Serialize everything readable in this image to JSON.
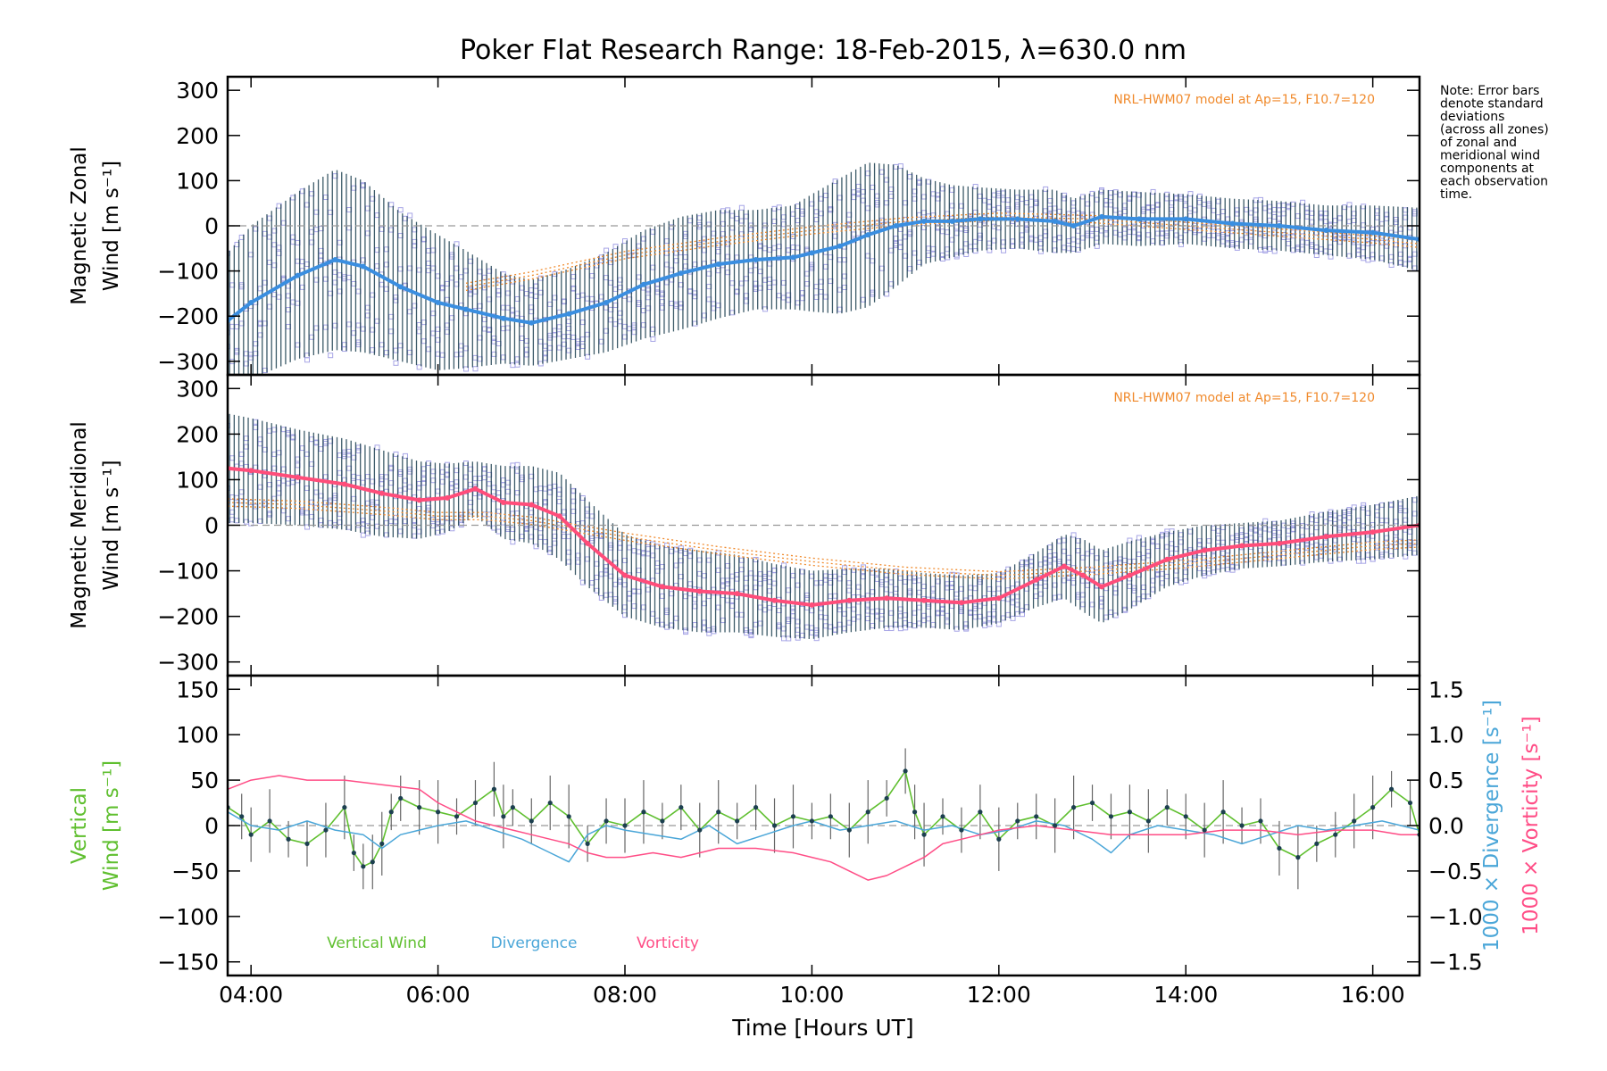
{
  "chart_data": {
    "title": "Poker Flat Research Range: 18-Feb-2015, λ=630.0 nm",
    "note": [
      "Note: Error bars",
      "denote standard",
      "deviations",
      "(across all zones)",
      "of zonal and",
      "meridional wind",
      "components at",
      "each observation",
      "time."
    ],
    "xlabel": "Time [Hours UT]",
    "xlim": [
      3.75,
      16.5
    ],
    "xticks": [
      4,
      6,
      8,
      10,
      12,
      14,
      16
    ],
    "xtick_labels": [
      "04:00",
      "06:00",
      "08:00",
      "10:00",
      "12:00",
      "14:00",
      "16:00"
    ],
    "colors": {
      "zonal": "#3a8ee0",
      "meridional": "#ff4d7a",
      "model": "#f08a2c",
      "errorbar": "#1c3f4f",
      "zone_points": "#a7a5e6",
      "vertical": "#5fbf2f",
      "divergence": "#4aa6d8",
      "vorticity": "#ff4d86",
      "reference": "#999999"
    },
    "panels": [
      {
        "type": "line",
        "ylabel": [
          "Magnetic Zonal",
          "Wind [m s⁻¹]"
        ],
        "ylim": [
          -330,
          330
        ],
        "yticks": [
          -300,
          -200,
          -100,
          0,
          100,
          200,
          300
        ],
        "model_label": "NRL-HWM07 model at Ap=15, F10.7=120",
        "series": [
          {
            "key": "zonal",
            "x": [
              3.75,
              4.0,
              4.5,
              4.9,
              5.2,
              5.6,
              6.0,
              6.3,
              6.7,
              7.0,
              7.4,
              7.8,
              8.2,
              8.6,
              9.0,
              9.4,
              9.8,
              10.0,
              10.3,
              10.6,
              10.9,
              11.2,
              11.5,
              11.8,
              12.2,
              12.6,
              12.8,
              13.1,
              13.5,
              14.0,
              14.5,
              15.0,
              15.5,
              16.0,
              16.5
            ],
            "y": [
              -210,
              -170,
              -110,
              -75,
              -90,
              -135,
              -170,
              -185,
              -205,
              -215,
              -195,
              -170,
              -130,
              -105,
              -85,
              -75,
              -70,
              -60,
              -45,
              -20,
              0,
              10,
              10,
              15,
              15,
              10,
              0,
              20,
              15,
              15,
              5,
              0,
              -10,
              -15,
              -30
            ],
            "err": [
              150,
              170,
              185,
              200,
              190,
              165,
              150,
              130,
              100,
              95,
              100,
              110,
              120,
              125,
              120,
              110,
              115,
              130,
              150,
              160,
              135,
              95,
              80,
              70,
              65,
              70,
              60,
              60,
              60,
              55,
              55,
              55,
              55,
              60,
              70
            ]
          }
        ],
        "model": {
          "x": [
            6.3,
            7.0,
            8.0,
            9.0,
            10.0,
            11.0,
            12.0,
            13.0,
            14.0,
            15.0,
            16.0,
            16.5
          ],
          "y": [
            -135,
            -110,
            -65,
            -35,
            -10,
            10,
            20,
            15,
            0,
            -15,
            -30,
            -40
          ]
        }
      },
      {
        "type": "line",
        "ylabel": [
          "Magnetic Meridional",
          "Wind [m s⁻¹]"
        ],
        "ylim": [
          -330,
          330
        ],
        "yticks": [
          -300,
          -200,
          -100,
          0,
          100,
          200,
          300
        ],
        "model_label": "NRL-HWM07 model at Ap=15, F10.7=120",
        "series": [
          {
            "key": "meridional",
            "x": [
              3.75,
              4.0,
              4.5,
              5.0,
              5.4,
              5.8,
              6.1,
              6.4,
              6.7,
              7.0,
              7.3,
              7.6,
              8.0,
              8.4,
              8.8,
              9.2,
              9.6,
              10.0,
              10.4,
              10.8,
              11.2,
              11.6,
              12.0,
              12.4,
              12.7,
              12.9,
              13.1,
              13.4,
              13.8,
              14.2,
              14.6,
              15.0,
              15.5,
              16.0,
              16.5
            ],
            "y": [
              125,
              120,
              105,
              90,
              70,
              55,
              60,
              80,
              50,
              45,
              20,
              -40,
              -110,
              -135,
              -145,
              -150,
              -165,
              -175,
              -165,
              -160,
              -165,
              -170,
              -160,
              -120,
              -90,
              -110,
              -135,
              -110,
              -75,
              -55,
              -45,
              -40,
              -25,
              -15,
              0
            ],
            "err": [
              120,
              115,
              105,
              100,
              95,
              85,
              75,
              60,
              80,
              85,
              95,
              95,
              90,
              90,
              90,
              85,
              80,
              75,
              70,
              65,
              60,
              60,
              55,
              60,
              70,
              80,
              80,
              75,
              60,
              55,
              50,
              50,
              55,
              60,
              65
            ]
          }
        ],
        "model": {
          "x": [
            3.75,
            4.5,
            5.5,
            6.0,
            6.5,
            7.0,
            8.0,
            9.0,
            10.0,
            11.0,
            12.0,
            13.0,
            14.0,
            15.0,
            16.0,
            16.5
          ],
          "y": [
            50,
            45,
            30,
            20,
            20,
            10,
            -25,
            -55,
            -80,
            -100,
            -110,
            -100,
            -85,
            -65,
            -45,
            -40
          ]
        }
      },
      {
        "type": "line",
        "ylabel": [
          "Vertical",
          "Wind [m s⁻¹]"
        ],
        "ylim": [
          -165,
          165
        ],
        "yticks": [
          -150,
          -100,
          -50,
          0,
          50,
          100,
          150
        ],
        "y2label_div": "1000 × Divergence [s⁻¹]",
        "y2label_vort": "1000 × Vorticity [s⁻¹]",
        "y2lim": [
          -1.65,
          1.65
        ],
        "y2ticks": [
          -1.5,
          -1.0,
          -0.5,
          0.0,
          0.5,
          1.0,
          1.5
        ],
        "y2tick_labels": [
          "−1.5",
          "−1.0",
          "−0.5",
          "0.0",
          "0.5",
          "1.0",
          "1.5"
        ],
        "legend": [
          "Vertical Wind",
          "Divergence",
          "Vorticity"
        ],
        "series": [
          {
            "key": "vertical",
            "name": "Vertical Wind",
            "axis": "left",
            "x": [
              3.75,
              3.9,
              4.0,
              4.2,
              4.4,
              4.6,
              4.8,
              5.0,
              5.1,
              5.2,
              5.3,
              5.4,
              5.5,
              5.6,
              5.8,
              6.0,
              6.2,
              6.4,
              6.6,
              6.7,
              6.8,
              7.0,
              7.2,
              7.4,
              7.6,
              7.8,
              8.0,
              8.2,
              8.4,
              8.6,
              8.8,
              9.0,
              9.2,
              9.4,
              9.6,
              9.8,
              10.0,
              10.2,
              10.4,
              10.6,
              10.8,
              11.0,
              11.1,
              11.2,
              11.4,
              11.6,
              11.8,
              12.0,
              12.2,
              12.4,
              12.6,
              12.8,
              13.0,
              13.2,
              13.4,
              13.6,
              13.8,
              14.0,
              14.2,
              14.4,
              14.6,
              14.8,
              15.0,
              15.2,
              15.4,
              15.6,
              15.8,
              16.0,
              16.2,
              16.4,
              16.5
            ],
            "y": [
              20,
              10,
              -10,
              5,
              -15,
              -20,
              -5,
              20,
              -30,
              -45,
              -40,
              -20,
              15,
              30,
              20,
              15,
              10,
              25,
              40,
              10,
              20,
              5,
              25,
              10,
              -20,
              5,
              0,
              15,
              5,
              20,
              -5,
              15,
              5,
              20,
              0,
              10,
              5,
              10,
              -5,
              15,
              30,
              60,
              15,
              -10,
              10,
              -5,
              15,
              -15,
              5,
              10,
              0,
              20,
              25,
              10,
              15,
              5,
              20,
              10,
              -5,
              15,
              0,
              5,
              -25,
              -35,
              -20,
              -10,
              5,
              20,
              40,
              25,
              -10
            ]
          },
          {
            "key": "divergence",
            "name": "Divergence",
            "axis": "right",
            "x": [
              3.75,
              4.0,
              4.3,
              4.6,
              4.9,
              5.2,
              5.4,
              5.6,
              5.8,
              6.0,
              6.3,
              6.6,
              6.9,
              7.2,
              7.4,
              7.6,
              7.8,
              8.0,
              8.3,
              8.6,
              8.9,
              9.2,
              9.5,
              9.8,
              10.0,
              10.3,
              10.6,
              10.9,
              11.2,
              11.5,
              11.8,
              12.1,
              12.4,
              12.7,
              13.0,
              13.2,
              13.4,
              13.7,
              14.0,
              14.3,
              14.6,
              14.9,
              15.2,
              15.5,
              15.8,
              16.1,
              16.3,
              16.5
            ],
            "y": [
              0.15,
              0.0,
              -0.05,
              0.05,
              -0.05,
              -0.1,
              -0.25,
              -0.1,
              -0.05,
              0.0,
              0.05,
              -0.05,
              -0.15,
              -0.3,
              -0.4,
              -0.1,
              0.0,
              -0.05,
              -0.1,
              -0.15,
              0.0,
              -0.2,
              -0.1,
              0.0,
              0.05,
              -0.05,
              0.0,
              0.05,
              -0.05,
              0.0,
              -0.1,
              -0.05,
              0.05,
              0.0,
              -0.15,
              -0.3,
              -0.1,
              0.0,
              -0.05,
              -0.1,
              -0.2,
              -0.1,
              0.0,
              -0.05,
              0.0,
              0.05,
              0.0,
              -0.05
            ]
          },
          {
            "key": "vorticity",
            "name": "Vorticity",
            "axis": "right",
            "x": [
              3.75,
              4.0,
              4.3,
              4.6,
              5.0,
              5.4,
              5.8,
              6.0,
              6.2,
              6.4,
              6.6,
              6.8,
              7.0,
              7.2,
              7.4,
              7.6,
              7.8,
              8.0,
              8.3,
              8.6,
              9.0,
              9.4,
              9.8,
              10.0,
              10.2,
              10.4,
              10.6,
              10.8,
              11.0,
              11.2,
              11.4,
              11.6,
              11.8,
              12.0,
              12.4,
              12.8,
              13.2,
              13.6,
              14.0,
              14.4,
              14.8,
              15.2,
              15.6,
              16.0,
              16.3,
              16.5
            ],
            "y": [
              0.4,
              0.5,
              0.55,
              0.5,
              0.5,
              0.45,
              0.4,
              0.25,
              0.15,
              0.05,
              0.0,
              -0.05,
              -0.1,
              -0.15,
              -0.2,
              -0.3,
              -0.35,
              -0.35,
              -0.3,
              -0.35,
              -0.25,
              -0.25,
              -0.3,
              -0.35,
              -0.4,
              -0.5,
              -0.6,
              -0.55,
              -0.45,
              -0.35,
              -0.2,
              -0.15,
              -0.1,
              -0.05,
              0.0,
              -0.05,
              -0.1,
              -0.1,
              -0.1,
              -0.05,
              -0.05,
              -0.1,
              -0.05,
              -0.05,
              -0.1,
              -0.1
            ]
          }
        ]
      }
    ]
  }
}
